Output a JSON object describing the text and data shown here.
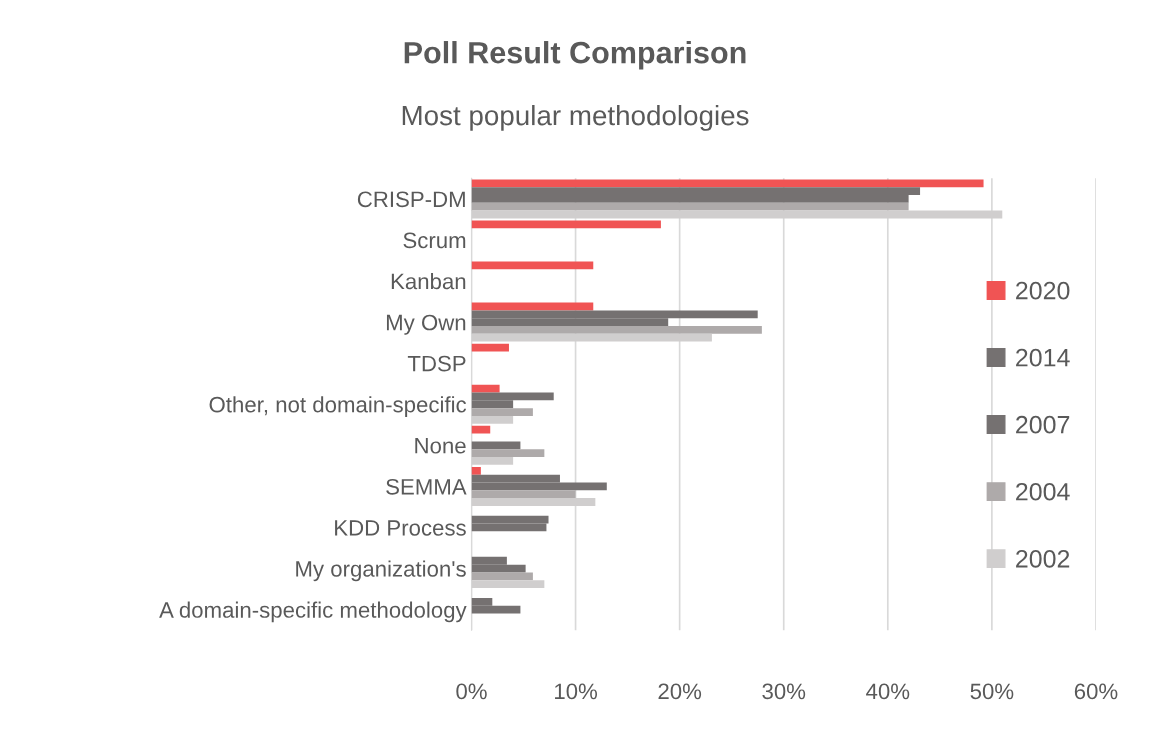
{
  "chart_data": {
    "type": "bar",
    "orientation": "horizontal",
    "title": "Poll Result Comparison",
    "subtitle": "Most popular methodologies",
    "categories": [
      "CRISP-DM",
      "Scrum",
      "Kanban",
      "My Own",
      "TDSP",
      "Other, not domain-specific",
      "None",
      "SEMMA",
      "KDD Process",
      "My organization's",
      "A domain-specific methodology"
    ],
    "series": [
      {
        "name": "2020",
        "color": "#f05454",
        "values": [
          49.2,
          18.2,
          11.7,
          11.7,
          3.6,
          2.7,
          1.8,
          0.9,
          null,
          null,
          null
        ]
      },
      {
        "name": "2014",
        "color": "#757171",
        "values": [
          43.1,
          null,
          null,
          27.5,
          null,
          7.9,
          null,
          8.5,
          7.4,
          3.4,
          2.0
        ]
      },
      {
        "name": "2007",
        "color": "#757171",
        "values": [
          42.0,
          null,
          null,
          18.9,
          null,
          4.0,
          4.7,
          13.0,
          7.2,
          5.2,
          4.7
        ]
      },
      {
        "name": "2004",
        "color": "#aeaaaa",
        "values": [
          42.0,
          null,
          null,
          27.9,
          null,
          5.9,
          7.0,
          10.0,
          null,
          5.9,
          null
        ]
      },
      {
        "name": "2002",
        "color": "#d0cece",
        "values": [
          51.0,
          null,
          null,
          23.1,
          null,
          4.0,
          4.0,
          11.9,
          null,
          7.0,
          null
        ]
      }
    ],
    "xlim": [
      0,
      60
    ],
    "xticks": [
      {
        "value": 0,
        "label": "0%"
      },
      {
        "value": 10,
        "label": "10%"
      },
      {
        "value": 20,
        "label": "20%"
      },
      {
        "value": 30,
        "label": "30%"
      },
      {
        "value": 40,
        "label": "40%"
      },
      {
        "value": 50,
        "label": "50%"
      },
      {
        "value": 60,
        "label": "60%"
      }
    ],
    "grid": "x",
    "legend": "right"
  }
}
